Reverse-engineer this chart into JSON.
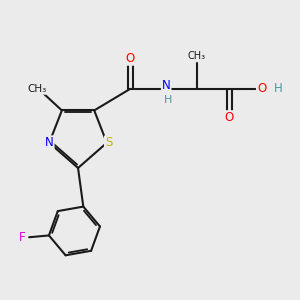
{
  "bg_color": "#ebebeb",
  "bond_color": "#1a1a1a",
  "bond_width": 1.5,
  "dbo": 0.055,
  "atom_colors": {
    "O": "#ff0000",
    "N": "#0000ff",
    "S": "#bbbb00",
    "F": "#dd00dd",
    "C": "#1a1a1a",
    "H": "#4a9a9a"
  },
  "figsize": [
    3.0,
    3.0
  ],
  "dpi": 100
}
